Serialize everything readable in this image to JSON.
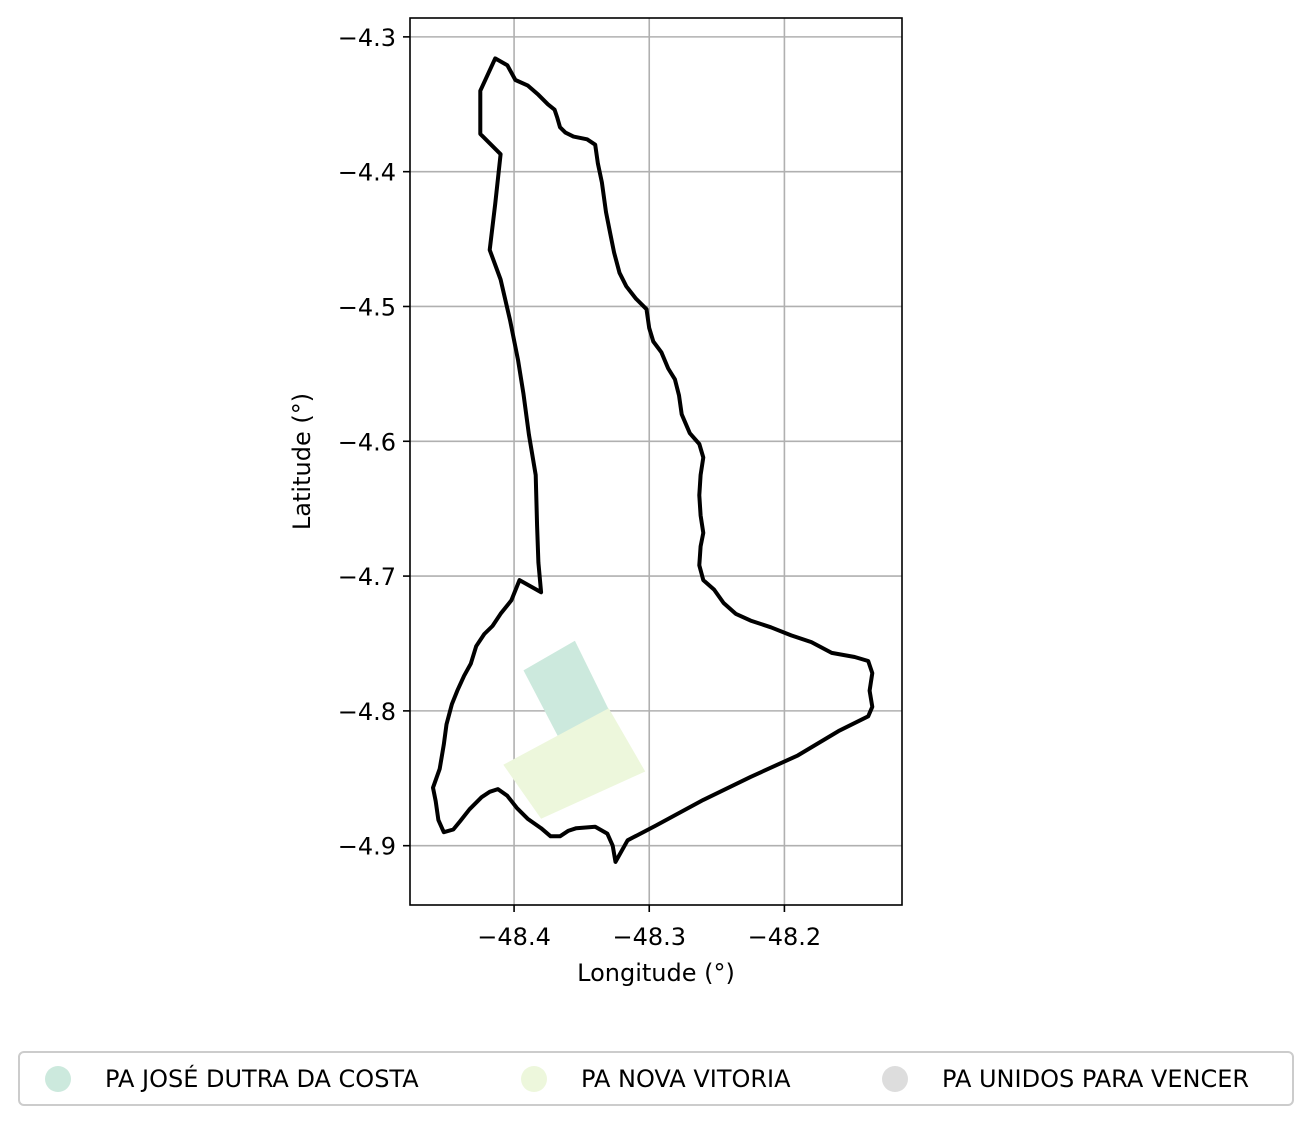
{
  "chart_data": {
    "type": "map",
    "xlabel": "Longitude (°)",
    "ylabel": "Latitude (°)",
    "xlim": [
      -48.477,
      -48.113
    ],
    "ylim": [
      -4.944,
      -4.286
    ],
    "x_ticks": [
      -48.4,
      -48.3,
      -48.2
    ],
    "x_tick_labels": [
      "−48.4",
      "−48.3",
      "−48.2"
    ],
    "y_ticks": [
      -4.3,
      -4.4,
      -4.5,
      -4.6,
      -4.7,
      -4.8,
      -4.9
    ],
    "y_tick_labels": [
      "−4.3",
      "−4.4",
      "−4.5",
      "−4.6",
      "−4.7",
      "−4.8",
      "−4.9"
    ],
    "grid": true,
    "legend_position": "bottom",
    "boundary": {
      "color": "#000000",
      "coords": [
        [
          -48.414,
          -4.316
        ],
        [
          -48.405,
          -4.321
        ],
        [
          -48.399,
          -4.332
        ],
        [
          -48.39,
          -4.336
        ],
        [
          -48.382,
          -4.343
        ],
        [
          -48.375,
          -4.35
        ],
        [
          -48.37,
          -4.354
        ],
        [
          -48.368,
          -4.36
        ],
        [
          -48.366,
          -4.367
        ],
        [
          -48.362,
          -4.371
        ],
        [
          -48.356,
          -4.374
        ],
        [
          -48.346,
          -4.376
        ],
        [
          -48.34,
          -4.38
        ],
        [
          -48.338,
          -4.394
        ],
        [
          -48.335,
          -4.408
        ],
        [
          -48.332,
          -4.43
        ],
        [
          -48.329,
          -4.445
        ],
        [
          -48.326,
          -4.46
        ],
        [
          -48.322,
          -4.475
        ],
        [
          -48.317,
          -4.485
        ],
        [
          -48.31,
          -4.494
        ],
        [
          -48.302,
          -4.502
        ],
        [
          -48.3,
          -4.516
        ],
        [
          -48.297,
          -4.526
        ],
        [
          -48.291,
          -4.534
        ],
        [
          -48.286,
          -4.546
        ],
        [
          -48.281,
          -4.554
        ],
        [
          -48.278,
          -4.566
        ],
        [
          -48.276,
          -4.58
        ],
        [
          -48.27,
          -4.594
        ],
        [
          -48.263,
          -4.602
        ],
        [
          -48.26,
          -4.612
        ],
        [
          -48.262,
          -4.625
        ],
        [
          -48.263,
          -4.64
        ],
        [
          -48.262,
          -4.655
        ],
        [
          -48.26,
          -4.668
        ],
        [
          -48.262,
          -4.678
        ],
        [
          -48.263,
          -4.692
        ],
        [
          -48.26,
          -4.703
        ],
        [
          -48.252,
          -4.71
        ],
        [
          -48.245,
          -4.72
        ],
        [
          -48.236,
          -4.728
        ],
        [
          -48.225,
          -4.733
        ],
        [
          -48.21,
          -4.738
        ],
        [
          -48.195,
          -4.744
        ],
        [
          -48.18,
          -4.749
        ],
        [
          -48.165,
          -4.757
        ],
        [
          -48.148,
          -4.76
        ],
        [
          -48.138,
          -4.763
        ],
        [
          -48.135,
          -4.772
        ],
        [
          -48.137,
          -4.785
        ],
        [
          -48.135,
          -4.797
        ],
        [
          -48.138,
          -4.804
        ],
        [
          -48.16,
          -4.815
        ],
        [
          -48.19,
          -4.833
        ],
        [
          -48.225,
          -4.849
        ],
        [
          -48.26,
          -4.866
        ],
        [
          -48.295,
          -4.885
        ],
        [
          -48.316,
          -4.896
        ],
        [
          -48.325,
          -4.912
        ],
        [
          -48.327,
          -4.9
        ],
        [
          -48.331,
          -4.891
        ],
        [
          -48.34,
          -4.886
        ],
        [
          -48.354,
          -4.887
        ],
        [
          -48.36,
          -4.889
        ],
        [
          -48.366,
          -4.893
        ],
        [
          -48.373,
          -4.893
        ],
        [
          -48.38,
          -4.887
        ],
        [
          -48.39,
          -4.88
        ],
        [
          -48.398,
          -4.872
        ],
        [
          -48.405,
          -4.863
        ],
        [
          -48.412,
          -4.858
        ],
        [
          -48.418,
          -4.86
        ],
        [
          -48.424,
          -4.864
        ],
        [
          -48.433,
          -4.873
        ],
        [
          -48.44,
          -4.882
        ],
        [
          -48.445,
          -4.888
        ],
        [
          -48.452,
          -4.89
        ],
        [
          -48.456,
          -4.881
        ],
        [
          -48.458,
          -4.867
        ],
        [
          -48.46,
          -4.857
        ],
        [
          -48.455,
          -4.843
        ],
        [
          -48.452,
          -4.825
        ],
        [
          -48.45,
          -4.81
        ],
        [
          -48.446,
          -4.795
        ],
        [
          -48.442,
          -4.785
        ],
        [
          -48.437,
          -4.774
        ],
        [
          -48.432,
          -4.765
        ],
        [
          -48.428,
          -4.752
        ],
        [
          -48.422,
          -4.743
        ],
        [
          -48.416,
          -4.737
        ],
        [
          -48.41,
          -4.728
        ],
        [
          -48.402,
          -4.718
        ],
        [
          -48.396,
          -4.703
        ],
        [
          -48.38,
          -4.712
        ],
        [
          -48.382,
          -4.69
        ],
        [
          -48.383,
          -4.663
        ],
        [
          -48.384,
          -4.625
        ],
        [
          -48.389,
          -4.595
        ],
        [
          -48.393,
          -4.565
        ],
        [
          -48.397,
          -4.54
        ],
        [
          -48.403,
          -4.51
        ],
        [
          -48.41,
          -4.48
        ],
        [
          -48.418,
          -4.458
        ],
        [
          -48.414,
          -4.424
        ],
        [
          -48.41,
          -4.387
        ],
        [
          -48.425,
          -4.372
        ],
        [
          -48.425,
          -4.34
        ],
        [
          -48.414,
          -4.316
        ]
      ]
    },
    "settlements": [
      {
        "name": "PA JOSÉ DUTRA DA COSTA",
        "color": "#cce9dd",
        "polygon": [
          [
            -48.393,
            -4.77
          ],
          [
            -48.355,
            -4.748
          ],
          [
            -48.33,
            -4.799
          ],
          [
            -48.367,
            -4.82
          ]
        ]
      },
      {
        "name": "PA NOVA VITORIA",
        "color": "#edf7dc",
        "polygon": [
          [
            -48.408,
            -4.84
          ],
          [
            -48.33,
            -4.798
          ],
          [
            -48.303,
            -4.845
          ],
          [
            -48.38,
            -4.88
          ]
        ]
      },
      {
        "name": "PA UNIDOS PARA VENCER",
        "color": "#dddddd",
        "polygon": []
      }
    ]
  }
}
